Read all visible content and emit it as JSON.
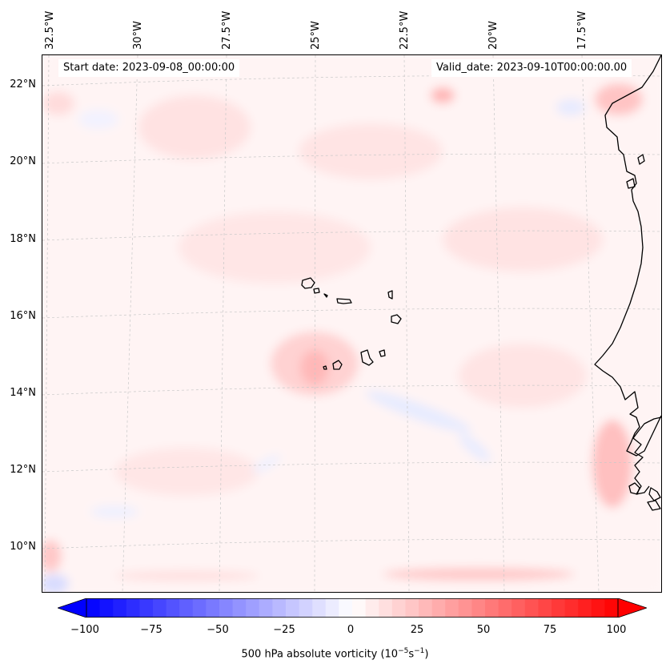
{
  "map": {
    "longitude_labels": [
      "32.5°W",
      "30°W",
      "27.5°W",
      "25°W",
      "22.5°W",
      "20°W",
      "17.5°W"
    ],
    "latitude_labels": [
      "22°N",
      "20°N",
      "18°N",
      "16°N",
      "14°N",
      "12°N",
      "10°N"
    ],
    "start_date": "Start date: 2023-09-08_00:00:00",
    "valid_date": "Valid_date: 2023-09-10T00:00:00.00",
    "land_color": "#fff3f3",
    "ocean_color": "#fff6f6",
    "coastline_color": "#000000",
    "gridline_color": "#c8c8c8"
  },
  "colorbar": {
    "label_text": "500 hPa absolute vorticity (10",
    "label_exp1": "−5",
    "label_mid": "s",
    "label_exp2": "−1",
    "label_close": ")",
    "ticks": [
      "−100",
      "−75",
      "−50",
      "−25",
      "0",
      "25",
      "50",
      "75",
      "100"
    ],
    "min": -100,
    "max": 100,
    "extend": "both",
    "colormap": "bwr",
    "low_color": "#0000ff",
    "mid_color": "#ffffff",
    "high_color": "#ff0000"
  }
}
